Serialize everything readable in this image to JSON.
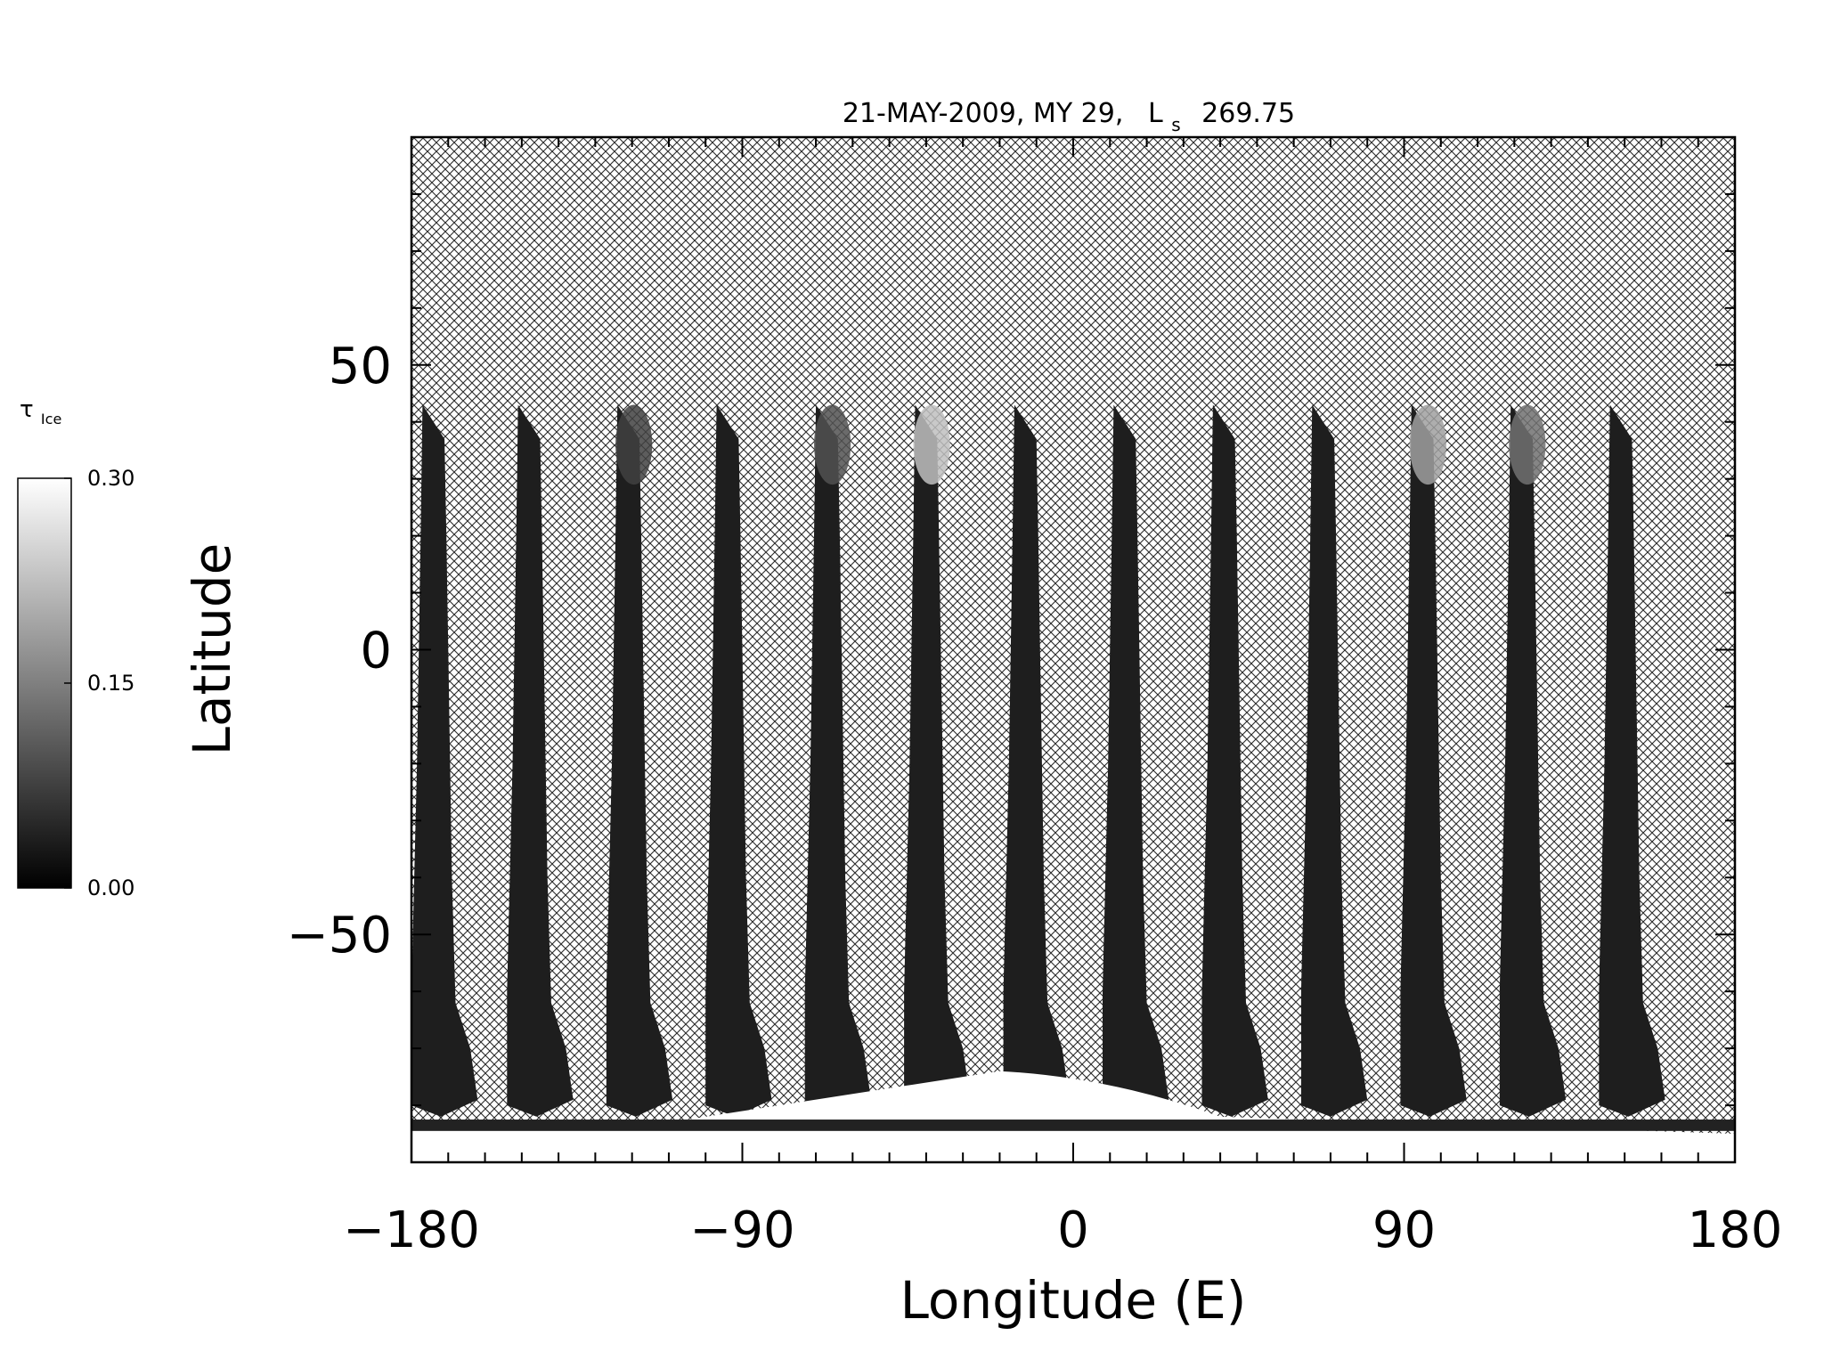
{
  "chart_data": {
    "type": "heatmap",
    "title": {
      "main": "21-MAY-2009, MY 29,",
      "ls_symbol": "L",
      "ls_sub": "s",
      "ls_value": "269.75"
    },
    "xlabel": "Longitude (E)",
    "ylabel": "Latitude",
    "xlim": [
      -180,
      180
    ],
    "ylim": [
      -90,
      90
    ],
    "x_ticks": [
      "-180",
      "-90",
      "0",
      "90",
      "180"
    ],
    "x_tick_values": [
      -180,
      -90,
      0,
      90,
      180
    ],
    "y_ticks": [
      "50",
      "0",
      "-50"
    ],
    "y_tick_values": [
      50,
      0,
      -50
    ],
    "x_minor_step": 10,
    "y_minor_step": 10,
    "grid": false,
    "no_data_fill": "crosshatch",
    "colorbar": {
      "label_symbol": "τ",
      "label_sub": "Ice",
      "ticks": [
        "0.30",
        "0.15",
        "0.00"
      ],
      "tick_values": [
        0.3,
        0.15,
        0.0
      ],
      "range": [
        0.0,
        0.3
      ],
      "colors": [
        "#000000",
        "#ffffff"
      ],
      "placement": "left"
    },
    "swaths": [
      {
        "lon": -174,
        "peak": 0.02
      },
      {
        "lon": -148,
        "peak": 0.04
      },
      {
        "lon": -121,
        "peak": 0.06
      },
      {
        "lon": -94,
        "peak": 0.05
      },
      {
        "lon": -67,
        "peak": 0.08
      },
      {
        "lon": -40,
        "peak": 0.22
      },
      {
        "lon": -13,
        "peak": 0.02
      },
      {
        "lon": 14,
        "peak": 0.02
      },
      {
        "lon": 41,
        "peak": 0.03
      },
      {
        "lon": 68,
        "peak": 0.02
      },
      {
        "lon": 95,
        "peak": 0.18
      },
      {
        "lon": 122,
        "peak": 0.12
      },
      {
        "lon": 149,
        "peak": 0.04
      }
    ],
    "south_polar_cap": {
      "lat_edge": -74,
      "value": 0.3
    }
  }
}
